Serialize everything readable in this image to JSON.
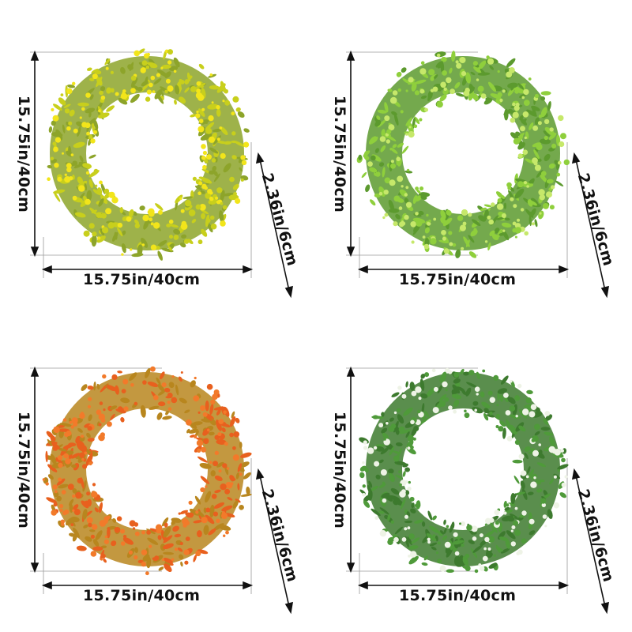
{
  "labels": {
    "width": "15.75in/40cm",
    "height": "15.75in/40cm",
    "depth": "2.36in/6cm"
  },
  "variants": [
    {
      "name": "yellow",
      "base": "#c8cf1c",
      "accent": "#f2e51a",
      "stem": "#8da42a"
    },
    {
      "name": "light-green",
      "base": "#8fcf3c",
      "accent": "#c6e86a",
      "stem": "#5c9a2e"
    },
    {
      "name": "orange",
      "base": "#e8601e",
      "accent": "#f27a2a",
      "stem": "#b8861e"
    },
    {
      "name": "green-white",
      "base": "#4f9a3a",
      "accent": "#eef3e6",
      "stem": "#3d7a2e"
    }
  ]
}
